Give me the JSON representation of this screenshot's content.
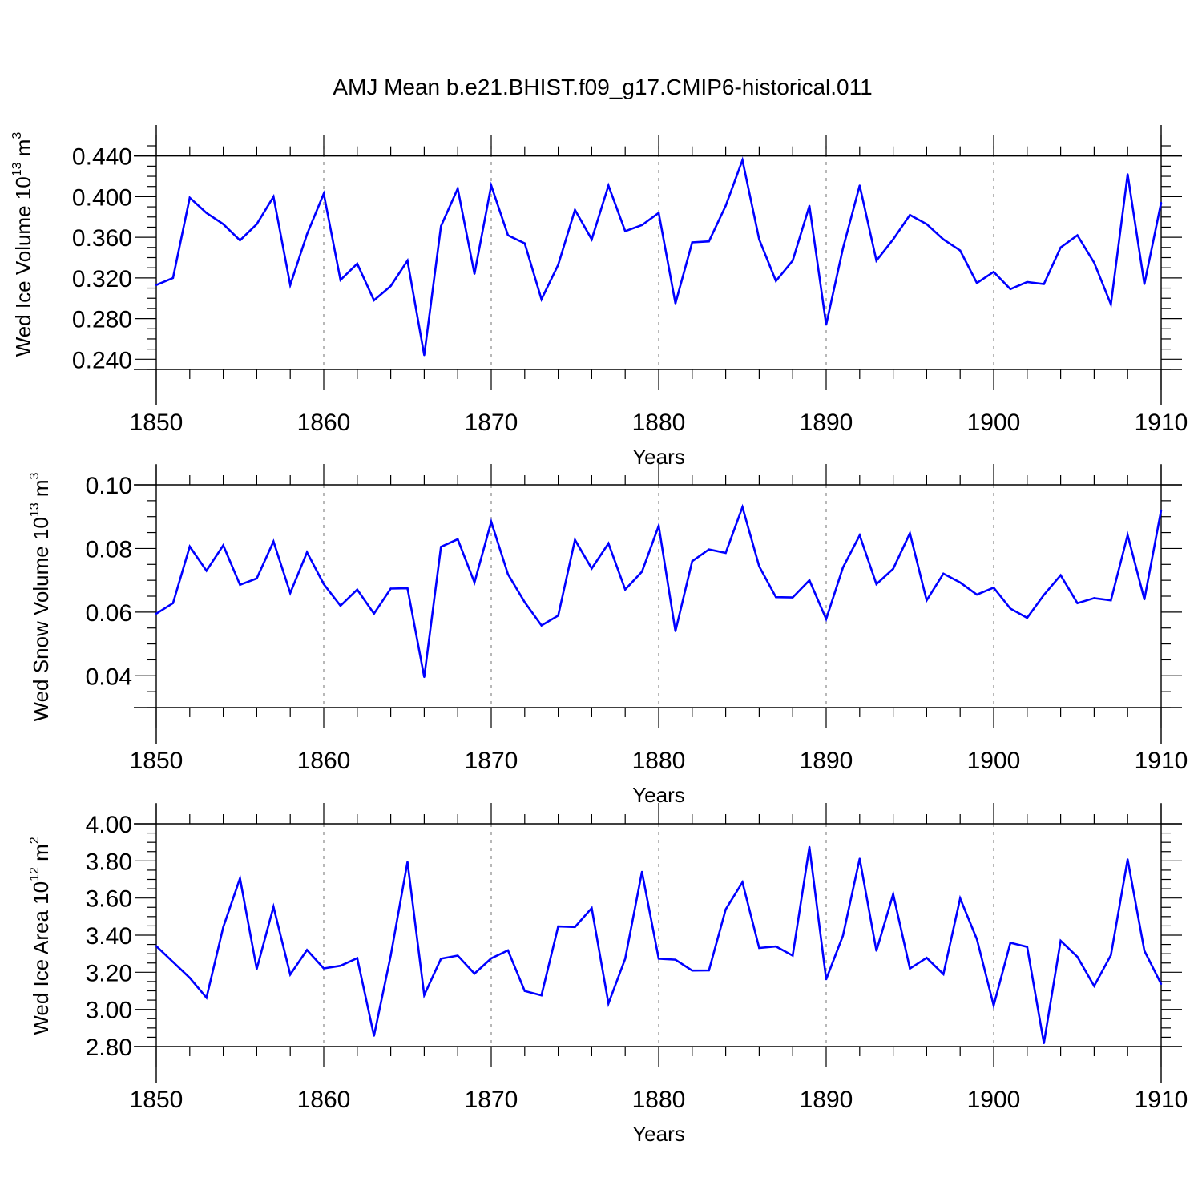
{
  "title": "AMJ Mean b.e21.BHIST.f09_g17.CMIP6-historical.011",
  "chart_data": [
    {
      "type": "line",
      "name": "ice-volume",
      "ylabel": {
        "prefix": "Wed Ice Volume 10",
        "exp1": "13",
        "mid": " m",
        "exp2": "3"
      },
      "xlabel": "Years",
      "xlim": [
        1850,
        1910
      ],
      "ylim": [
        0.23,
        0.45
      ],
      "xticks": [
        "1850",
        "1860",
        "1870",
        "1880",
        "1890",
        "1900",
        "1910"
      ],
      "yticks": [
        "0.240",
        "0.280",
        "0.320",
        "0.360",
        "0.400",
        "0.440"
      ],
      "ytick_values": [
        0.24,
        0.28,
        0.32,
        0.36,
        0.4,
        0.44
      ],
      "x_start": 1850,
      "color": "#0000ff",
      "values": [
        0.313,
        0.32,
        0.399,
        0.384,
        0.373,
        0.357,
        0.373,
        0.4,
        0.313,
        0.363,
        0.403,
        0.318,
        0.334,
        0.298,
        0.312,
        0.337,
        0.244,
        0.371,
        0.408,
        0.324,
        0.411,
        0.362,
        0.354,
        0.299,
        0.333,
        0.387,
        0.358,
        0.411,
        0.366,
        0.372,
        0.384,
        0.295,
        0.355,
        0.356,
        0.391,
        0.436,
        0.358,
        0.317,
        0.337,
        0.391,
        0.274,
        0.349,
        0.411,
        0.337,
        0.358,
        0.382,
        0.373,
        0.358,
        0.347,
        0.315,
        0.326,
        0.309,
        0.316,
        0.314,
        0.35,
        0.362,
        0.335,
        0.294,
        0.422,
        0.314,
        0.394
      ]
    },
    {
      "type": "line",
      "name": "snow-volume",
      "ylabel": {
        "prefix": "Wed Snow Volume 10",
        "exp1": "13",
        "mid": " m",
        "exp2": "3"
      },
      "xlabel": "Years",
      "xlim": [
        1850,
        1910
      ],
      "ylim": [
        0.03,
        0.1
      ],
      "xticks": [
        "1850",
        "1860",
        "1870",
        "1880",
        "1890",
        "1900",
        "1910"
      ],
      "yticks": [
        "0.04",
        "0.06",
        "0.08",
        "0.10"
      ],
      "ytick_values": [
        0.04,
        0.06,
        0.08,
        0.1
      ],
      "x_start": 1850,
      "color": "#0000ff",
      "values": [
        0.0595,
        0.0628,
        0.0806,
        0.073,
        0.081,
        0.0686,
        0.0706,
        0.0822,
        0.066,
        0.0788,
        0.0688,
        0.062,
        0.0671,
        0.0595,
        0.0674,
        0.0675,
        0.0396,
        0.0805,
        0.0829,
        0.0693,
        0.0884,
        0.0719,
        0.0631,
        0.0558,
        0.0589,
        0.0827,
        0.0737,
        0.0816,
        0.0671,
        0.0727,
        0.0871,
        0.054,
        0.076,
        0.0797,
        0.0786,
        0.093,
        0.0744,
        0.0647,
        0.0646,
        0.07,
        0.0578,
        0.074,
        0.0841,
        0.0688,
        0.0736,
        0.0848,
        0.0637,
        0.0721,
        0.0693,
        0.0655,
        0.0677,
        0.0611,
        0.0582,
        0.0654,
        0.0716,
        0.0628,
        0.0644,
        0.0637,
        0.0842,
        0.064,
        0.092
      ]
    },
    {
      "type": "line",
      "name": "ice-area",
      "ylabel": {
        "prefix": "Wed Ice Area 10",
        "exp1": "12",
        "mid": " m",
        "exp2": "2"
      },
      "xlabel": "Years",
      "xlim": [
        1850,
        1910
      ],
      "ylim": [
        2.8,
        4.0
      ],
      "xticks": [
        "1850",
        "1860",
        "1870",
        "1880",
        "1890",
        "1900",
        "1910"
      ],
      "yticks": [
        "2.80",
        "3.00",
        "3.20",
        "3.40",
        "3.60",
        "3.80",
        "4.00"
      ],
      "ytick_values": [
        2.8,
        3.0,
        3.2,
        3.4,
        3.6,
        3.8,
        4.0
      ],
      "x_start": 1850,
      "color": "#0000ff",
      "values": [
        3.341,
        3.256,
        3.17,
        3.063,
        3.443,
        3.706,
        3.218,
        3.553,
        3.188,
        3.32,
        3.221,
        3.235,
        3.276,
        2.858,
        3.29,
        3.794,
        3.077,
        3.273,
        3.29,
        3.193,
        3.275,
        3.318,
        3.099,
        3.076,
        3.447,
        3.444,
        3.546,
        3.032,
        3.273,
        3.741,
        3.273,
        3.268,
        3.209,
        3.21,
        3.539,
        3.685,
        3.331,
        3.339,
        3.29,
        3.875,
        3.162,
        3.397,
        3.812,
        3.316,
        3.621,
        3.22,
        3.278,
        3.19,
        3.598,
        3.378,
        3.021,
        3.359,
        3.337,
        2.818,
        3.37,
        3.283,
        3.126,
        3.292,
        3.808,
        3.316,
        3.137
      ]
    }
  ]
}
